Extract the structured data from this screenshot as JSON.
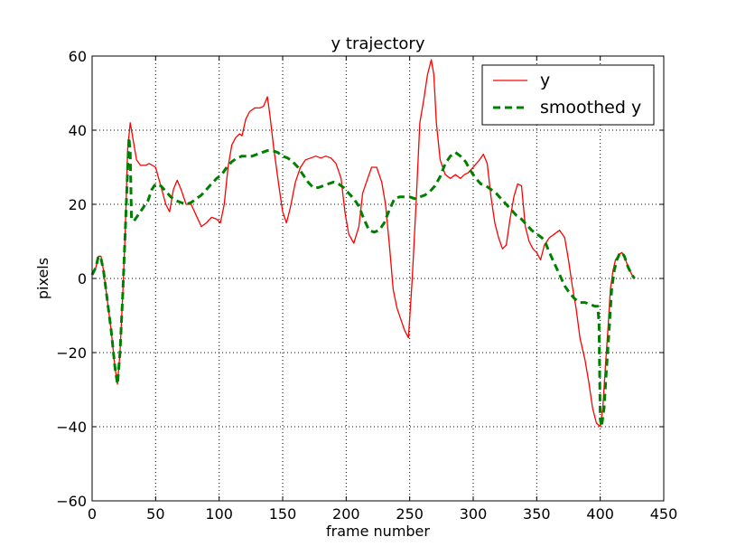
{
  "chart_data": {
    "type": "line",
    "title": "y trajectory",
    "xlabel": "frame number",
    "ylabel": "pixels",
    "xlim": [
      0,
      450
    ],
    "ylim": [
      -60,
      60
    ],
    "xticks": [
      0,
      50,
      100,
      150,
      200,
      250,
      300,
      350,
      400,
      450
    ],
    "yticks": [
      -60,
      -40,
      -20,
      0,
      20,
      40,
      60
    ],
    "xtick_labels": [
      "0",
      "50",
      "100",
      "150",
      "200",
      "250",
      "300",
      "350",
      "400",
      "450"
    ],
    "ytick_labels": [
      "−60",
      "−40",
      "−20",
      "0",
      "20",
      "40",
      "60"
    ],
    "grid": true,
    "legend_position": "top-right",
    "series": [
      {
        "name": "y",
        "color": "#ff0000",
        "style": "solid",
        "points": [
          [
            0,
            1
          ],
          [
            3,
            3
          ],
          [
            5,
            6
          ],
          [
            7,
            6
          ],
          [
            9,
            2
          ],
          [
            12,
            -6
          ],
          [
            15,
            -14
          ],
          [
            18,
            -24
          ],
          [
            20,
            -28.5
          ],
          [
            22,
            -20
          ],
          [
            24,
            -5
          ],
          [
            26,
            12
          ],
          [
            28,
            35
          ],
          [
            30,
            42
          ],
          [
            32,
            38
          ],
          [
            35,
            32
          ],
          [
            38,
            30.5
          ],
          [
            42,
            30.5
          ],
          [
            45,
            31
          ],
          [
            50,
            30
          ],
          [
            54,
            25
          ],
          [
            58,
            20
          ],
          [
            61,
            18
          ],
          [
            64,
            24
          ],
          [
            67,
            26.5
          ],
          [
            70,
            24
          ],
          [
            74,
            20
          ],
          [
            78,
            20
          ],
          [
            82,
            17
          ],
          [
            86,
            14
          ],
          [
            90,
            15
          ],
          [
            94,
            16.5
          ],
          [
            98,
            16
          ],
          [
            101,
            15
          ],
          [
            104,
            20
          ],
          [
            107,
            30
          ],
          [
            110,
            36
          ],
          [
            113,
            38
          ],
          [
            116,
            39
          ],
          [
            118,
            38.5
          ],
          [
            121,
            43
          ],
          [
            124,
            45
          ],
          [
            128,
            46
          ],
          [
            132,
            46
          ],
          [
            135,
            46.5
          ],
          [
            138,
            49
          ],
          [
            140,
            44
          ],
          [
            143,
            35
          ],
          [
            147,
            25
          ],
          [
            150,
            18
          ],
          [
            153,
            15
          ],
          [
            156,
            19
          ],
          [
            160,
            26
          ],
          [
            164,
            30
          ],
          [
            168,
            32
          ],
          [
            172,
            32.5
          ],
          [
            176,
            33
          ],
          [
            180,
            32.5
          ],
          [
            184,
            33
          ],
          [
            188,
            32.5
          ],
          [
            192,
            31
          ],
          [
            196,
            27
          ],
          [
            199,
            18
          ],
          [
            202,
            12
          ],
          [
            206,
            9.5
          ],
          [
            210,
            14
          ],
          [
            213,
            23
          ],
          [
            217,
            27
          ],
          [
            220,
            30
          ],
          [
            224,
            30
          ],
          [
            228,
            26
          ],
          [
            231,
            20
          ],
          [
            234,
            9
          ],
          [
            237,
            -3
          ],
          [
            240,
            -8
          ],
          [
            243,
            -11
          ],
          [
            246,
            -14
          ],
          [
            249,
            -16
          ],
          [
            252,
            0
          ],
          [
            255,
            20
          ],
          [
            258,
            42
          ],
          [
            261,
            48
          ],
          [
            264,
            55
          ],
          [
            267,
            59
          ],
          [
            269,
            55
          ],
          [
            271,
            42
          ],
          [
            274,
            32
          ],
          [
            278,
            28
          ],
          [
            282,
            27
          ],
          [
            286,
            28
          ],
          [
            290,
            27
          ],
          [
            293,
            28
          ],
          [
            296,
            28.5
          ],
          [
            300,
            30
          ],
          [
            305,
            32
          ],
          [
            308,
            33.5
          ],
          [
            311,
            31
          ],
          [
            314,
            22
          ],
          [
            317,
            15
          ],
          [
            320,
            11
          ],
          [
            323,
            8
          ],
          [
            326,
            9
          ],
          [
            329,
            16
          ],
          [
            332,
            22
          ],
          [
            335,
            25.5
          ],
          [
            338,
            25
          ],
          [
            341,
            14
          ],
          [
            344,
            10
          ],
          [
            347,
            8
          ],
          [
            350,
            7
          ],
          [
            353,
            5
          ],
          [
            356,
            9
          ],
          [
            360,
            11
          ],
          [
            364,
            12
          ],
          [
            368,
            13
          ],
          [
            372,
            11
          ],
          [
            375,
            5
          ],
          [
            378,
            -2
          ],
          [
            381,
            -8
          ],
          [
            384,
            -16
          ],
          [
            388,
            -22
          ],
          [
            391,
            -28
          ],
          [
            394,
            -35
          ],
          [
            397,
            -39
          ],
          [
            400,
            -40
          ],
          [
            402,
            -35
          ],
          [
            404,
            -24
          ],
          [
            406,
            -14
          ],
          [
            408,
            -3
          ],
          [
            410,
            2
          ],
          [
            412,
            5
          ],
          [
            415,
            6.5
          ],
          [
            417,
            7
          ],
          [
            419,
            6
          ],
          [
            422,
            3
          ],
          [
            425,
            1
          ],
          [
            427,
            0
          ]
        ]
      },
      {
        "name": "smoothed y",
        "color": "#008000",
        "style": "dashed",
        "points": [
          [
            0,
            1
          ],
          [
            3,
            3
          ],
          [
            5,
            6
          ],
          [
            7,
            5.5
          ],
          [
            9,
            2
          ],
          [
            12,
            -6
          ],
          [
            15,
            -14
          ],
          [
            18,
            -24
          ],
          [
            20,
            -28.5
          ],
          [
            22,
            -20
          ],
          [
            24,
            -5
          ],
          [
            26,
            12
          ],
          [
            28,
            30
          ],
          [
            29,
            38
          ],
          [
            30,
            34
          ],
          [
            31,
            16
          ],
          [
            33,
            15.5
          ],
          [
            36,
            17
          ],
          [
            40,
            19
          ],
          [
            44,
            21
          ],
          [
            47,
            24
          ],
          [
            50,
            25.5
          ],
          [
            54,
            25
          ],
          [
            58,
            23.5
          ],
          [
            62,
            22
          ],
          [
            66,
            21
          ],
          [
            70,
            20.5
          ],
          [
            74,
            20
          ],
          [
            78,
            20.5
          ],
          [
            82,
            21.5
          ],
          [
            86,
            22.5
          ],
          [
            90,
            24
          ],
          [
            94,
            25.5
          ],
          [
            98,
            27
          ],
          [
            102,
            28
          ],
          [
            106,
            30
          ],
          [
            110,
            31.5
          ],
          [
            114,
            32.5
          ],
          [
            118,
            33
          ],
          [
            122,
            33
          ],
          [
            126,
            33
          ],
          [
            130,
            33.5
          ],
          [
            134,
            34
          ],
          [
            138,
            34.5
          ],
          [
            142,
            34.5
          ],
          [
            146,
            34
          ],
          [
            150,
            33
          ],
          [
            154,
            32.5
          ],
          [
            158,
            31.5
          ],
          [
            162,
            30
          ],
          [
            166,
            28
          ],
          [
            170,
            26
          ],
          [
            174,
            24.5
          ],
          [
            178,
            24.5
          ],
          [
            182,
            25
          ],
          [
            186,
            25.5
          ],
          [
            190,
            26
          ],
          [
            194,
            25.5
          ],
          [
            198,
            24.5
          ],
          [
            202,
            23
          ],
          [
            206,
            21.5
          ],
          [
            210,
            19.5
          ],
          [
            214,
            16
          ],
          [
            218,
            13
          ],
          [
            222,
            12.5
          ],
          [
            226,
            13
          ],
          [
            230,
            15
          ],
          [
            234,
            18.5
          ],
          [
            238,
            21.5
          ],
          [
            242,
            22
          ],
          [
            246,
            22
          ],
          [
            250,
            22
          ],
          [
            254,
            21.5
          ],
          [
            258,
            22
          ],
          [
            262,
            22.5
          ],
          [
            266,
            23.5
          ],
          [
            270,
            25
          ],
          [
            274,
            27.5
          ],
          [
            278,
            31
          ],
          [
            282,
            33
          ],
          [
            286,
            34
          ],
          [
            290,
            33
          ],
          [
            294,
            31.5
          ],
          [
            298,
            29
          ],
          [
            302,
            27
          ],
          [
            306,
            25.5
          ],
          [
            310,
            25
          ],
          [
            314,
            24
          ],
          [
            318,
            23
          ],
          [
            322,
            21.5
          ],
          [
            326,
            20
          ],
          [
            330,
            18.5
          ],
          [
            334,
            17
          ],
          [
            338,
            16
          ],
          [
            342,
            14.5
          ],
          [
            346,
            13
          ],
          [
            350,
            12
          ],
          [
            354,
            11
          ],
          [
            357,
            9.5
          ],
          [
            360,
            7
          ],
          [
            364,
            4
          ],
          [
            368,
            1
          ],
          [
            372,
            -2
          ],
          [
            376,
            -4
          ],
          [
            380,
            -5.5
          ],
          [
            384,
            -6.5
          ],
          [
            388,
            -6.5
          ],
          [
            392,
            -7
          ],
          [
            396,
            -7.5
          ],
          [
            398,
            -7.5
          ],
          [
            399,
            -12
          ],
          [
            400,
            -38
          ],
          [
            401,
            -40
          ],
          [
            403,
            -35
          ],
          [
            405,
            -24
          ],
          [
            407,
            -14
          ],
          [
            409,
            -3
          ],
          [
            411,
            2
          ],
          [
            413,
            5
          ],
          [
            415,
            6.5
          ],
          [
            417,
            7
          ],
          [
            419,
            6
          ],
          [
            422,
            3
          ],
          [
            425,
            1
          ],
          [
            427,
            0
          ]
        ]
      }
    ]
  }
}
